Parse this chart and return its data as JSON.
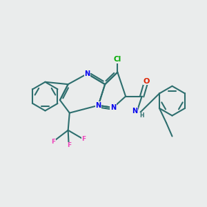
{
  "bg_color": "#eaecec",
  "bond_color": "#2d6e6e",
  "atom_colors": {
    "N": "#0000ee",
    "O": "#dd2200",
    "Cl": "#00aa00",
    "F": "#ee44bb",
    "C": "#2d6e6e"
  },
  "lw": 1.5,
  "fs": 7.0
}
